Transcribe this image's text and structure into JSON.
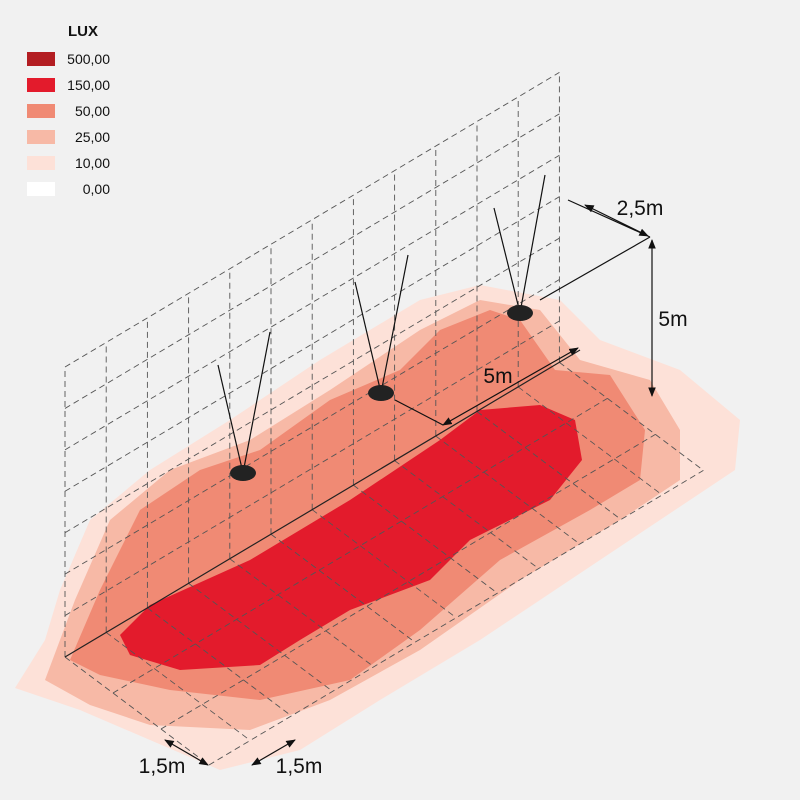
{
  "legend": {
    "title": "LUX",
    "items": [
      {
        "label": "500,00",
        "color": "#b31d22"
      },
      {
        "label": "150,00",
        "color": "#e31b2c"
      },
      {
        "label": "50,00",
        "color": "#f08a74"
      },
      {
        "label": "25,00",
        "color": "#f7b9a6"
      },
      {
        "label": "10,00",
        "color": "#fde1d8"
      },
      {
        "label": "0,00",
        "color": "#ffffff"
      }
    ]
  },
  "dimensions": [
    {
      "label": "2,5m"
    },
    {
      "label": "5m"
    },
    {
      "label": "5m"
    },
    {
      "label": "1,5m"
    },
    {
      "label": "1,5m"
    }
  ]
}
